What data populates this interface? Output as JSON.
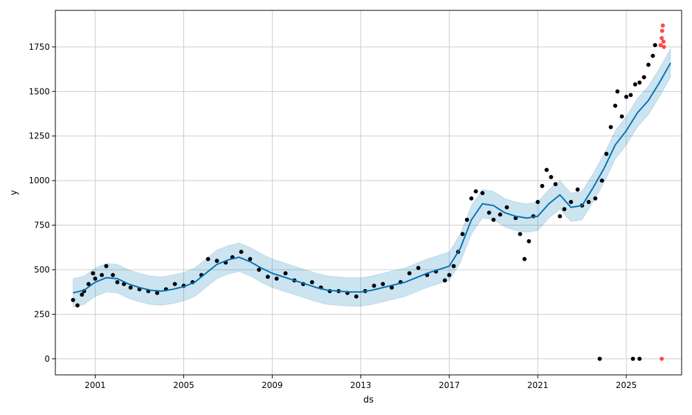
{
  "chart_data": {
    "type": "line",
    "title": "",
    "xlabel": "ds",
    "ylabel": "y",
    "grid": true,
    "legend": "none",
    "xlim": [
      1999.2,
      2027.5
    ],
    "ylim": [
      -90,
      1955
    ],
    "xticks": [
      {
        "value": 2001,
        "label": "2001"
      },
      {
        "value": 2005,
        "label": "2005"
      },
      {
        "value": 2009,
        "label": "2009"
      },
      {
        "value": 2013,
        "label": "2013"
      },
      {
        "value": 2017,
        "label": "2017"
      },
      {
        "value": 2021,
        "label": "2021"
      },
      {
        "value": 2025,
        "label": "2025"
      }
    ],
    "yticks": [
      {
        "value": 0,
        "label": "0"
      },
      {
        "value": 250,
        "label": "250"
      },
      {
        "value": 500,
        "label": "500"
      },
      {
        "value": 750,
        "label": "750"
      },
      {
        "value": 1000,
        "label": "1000"
      },
      {
        "value": 1250,
        "label": "1250"
      },
      {
        "value": 1500,
        "label": "1500"
      },
      {
        "value": 1750,
        "label": "1750"
      }
    ],
    "colors": {
      "forecast": "#0072B2",
      "interval": "#0072B2",
      "observed": "#000000",
      "future": "#ff2a2a",
      "grid": "#cccccc"
    },
    "series": [
      {
        "role": "forecast",
        "kind": "line",
        "x": [
          2000.0,
          2000.5,
          2001.0,
          2001.5,
          2002.0,
          2002.5,
          2003.0,
          2003.5,
          2004.0,
          2004.5,
          2005.0,
          2005.5,
          2006.0,
          2006.5,
          2007.0,
          2007.5,
          2008.0,
          2008.5,
          2009.0,
          2009.5,
          2010.0,
          2010.5,
          2011.0,
          2011.5,
          2012.0,
          2012.5,
          2013.0,
          2013.5,
          2014.0,
          2014.5,
          2015.0,
          2015.5,
          2016.0,
          2016.5,
          2017.0,
          2017.5,
          2018.0,
          2018.5,
          2019.0,
          2019.5,
          2020.0,
          2020.5,
          2021.0,
          2021.5,
          2022.0,
          2022.5,
          2023.0,
          2023.5,
          2024.0,
          2024.5,
          2025.0,
          2025.5,
          2026.0,
          2026.5,
          2027.0
        ],
        "y": [
          370,
          385,
          430,
          455,
          450,
          420,
          400,
          385,
          380,
          390,
          405,
          430,
          480,
          530,
          555,
          570,
          545,
          510,
          480,
          460,
          440,
          420,
          400,
          385,
          380,
          375,
          375,
          385,
          400,
          415,
          430,
          455,
          480,
          500,
          520,
          620,
          780,
          870,
          860,
          820,
          800,
          790,
          800,
          870,
          920,
          850,
          860,
          960,
          1070,
          1200,
          1280,
          1380,
          1450,
          1550,
          1660
        ]
      },
      {
        "role": "interval",
        "kind": "band",
        "x": [
          2000.0,
          2000.5,
          2001.0,
          2001.5,
          2002.0,
          2002.5,
          2003.0,
          2003.5,
          2004.0,
          2004.5,
          2005.0,
          2005.5,
          2006.0,
          2006.5,
          2007.0,
          2007.5,
          2008.0,
          2008.5,
          2009.0,
          2009.5,
          2010.0,
          2010.5,
          2011.0,
          2011.5,
          2012.0,
          2012.5,
          2013.0,
          2013.5,
          2014.0,
          2014.5,
          2015.0,
          2015.5,
          2016.0,
          2016.5,
          2017.0,
          2017.5,
          2018.0,
          2018.5,
          2019.0,
          2019.5,
          2020.0,
          2020.5,
          2021.0,
          2021.5,
          2022.0,
          2022.5,
          2023.0,
          2023.5,
          2024.0,
          2024.5,
          2025.0,
          2025.5,
          2026.0,
          2026.5,
          2027.0
        ],
        "lower": [
          290,
          305,
          350,
          375,
          370,
          340,
          320,
          305,
          300,
          310,
          325,
          350,
          400,
          450,
          475,
          490,
          465,
          430,
          400,
          380,
          360,
          340,
          320,
          305,
          300,
          295,
          295,
          305,
          320,
          335,
          350,
          375,
          400,
          420,
          440,
          540,
          700,
          790,
          780,
          740,
          720,
          710,
          720,
          790,
          840,
          770,
          780,
          880,
          990,
          1120,
          1200,
          1300,
          1370,
          1470,
          1580
        ],
        "upper": [
          450,
          465,
          510,
          535,
          530,
          500,
          480,
          465,
          460,
          470,
          485,
          510,
          560,
          610,
          635,
          650,
          625,
          590,
          560,
          540,
          520,
          500,
          480,
          465,
          460,
          455,
          455,
          465,
          480,
          495,
          510,
          535,
          560,
          580,
          600,
          700,
          860,
          950,
          940,
          900,
          880,
          870,
          880,
          950,
          1000,
          930,
          940,
          1040,
          1150,
          1280,
          1360,
          1460,
          1530,
          1630,
          1740
        ]
      },
      {
        "role": "observed",
        "kind": "scatter",
        "x": [
          2000.0,
          2000.2,
          2000.4,
          2000.5,
          2000.7,
          2000.9,
          2001.0,
          2001.3,
          2001.5,
          2001.8,
          2002.0,
          2002.3,
          2002.6,
          2003.0,
          2003.4,
          2003.8,
          2004.2,
          2004.6,
          2005.0,
          2005.4,
          2005.8,
          2006.1,
          2006.5,
          2006.9,
          2007.2,
          2007.6,
          2008.0,
          2008.4,
          2008.8,
          2009.2,
          2009.6,
          2010.0,
          2010.4,
          2010.8,
          2011.2,
          2011.6,
          2012.0,
          2012.4,
          2012.8,
          2013.2,
          2013.6,
          2014.0,
          2014.4,
          2014.8,
          2015.2,
          2015.6,
          2016.0,
          2016.4,
          2016.8,
          2017.0,
          2017.2,
          2017.4,
          2017.6,
          2017.8,
          2018.0,
          2018.2,
          2018.5,
          2018.8,
          2019.0,
          2019.3,
          2019.6,
          2020.0,
          2020.2,
          2020.4,
          2020.6,
          2020.8,
          2021.0,
          2021.2,
          2021.4,
          2021.6,
          2021.8,
          2022.0,
          2022.2,
          2022.5,
          2022.8,
          2023.0,
          2023.3,
          2023.6,
          2023.9,
          2024.1,
          2024.3,
          2024.5,
          2024.6,
          2024.8,
          2025.0,
          2025.2,
          2025.4,
          2025.6,
          2025.8,
          2026.0,
          2026.2,
          2026.3,
          2023.8,
          2025.3,
          2025.6
        ],
        "y": [
          330,
          300,
          360,
          380,
          420,
          480,
          450,
          470,
          520,
          470,
          430,
          420,
          400,
          390,
          380,
          370,
          390,
          420,
          410,
          430,
          470,
          560,
          550,
          540,
          570,
          600,
          560,
          500,
          460,
          450,
          480,
          440,
          420,
          430,
          400,
          380,
          380,
          370,
          350,
          380,
          410,
          420,
          400,
          430,
          480,
          510,
          470,
          490,
          440,
          470,
          520,
          600,
          700,
          780,
          900,
          940,
          930,
          820,
          780,
          810,
          850,
          790,
          700,
          560,
          660,
          800,
          880,
          970,
          1060,
          1020,
          980,
          800,
          840,
          880,
          950,
          860,
          880,
          900,
          1000,
          1150,
          1300,
          1420,
          1500,
          1360,
          1470,
          1480,
          1540,
          1550,
          1580,
          1650,
          1700,
          1760,
          0,
          0,
          0
        ]
      },
      {
        "role": "future",
        "kind": "scatter",
        "x": [
          2026.55,
          2026.6,
          2026.62,
          2026.65,
          2026.68,
          2026.7,
          2026.6
        ],
        "y": [
          1760,
          1800,
          1840,
          1870,
          1780,
          1750,
          0
        ]
      }
    ]
  }
}
